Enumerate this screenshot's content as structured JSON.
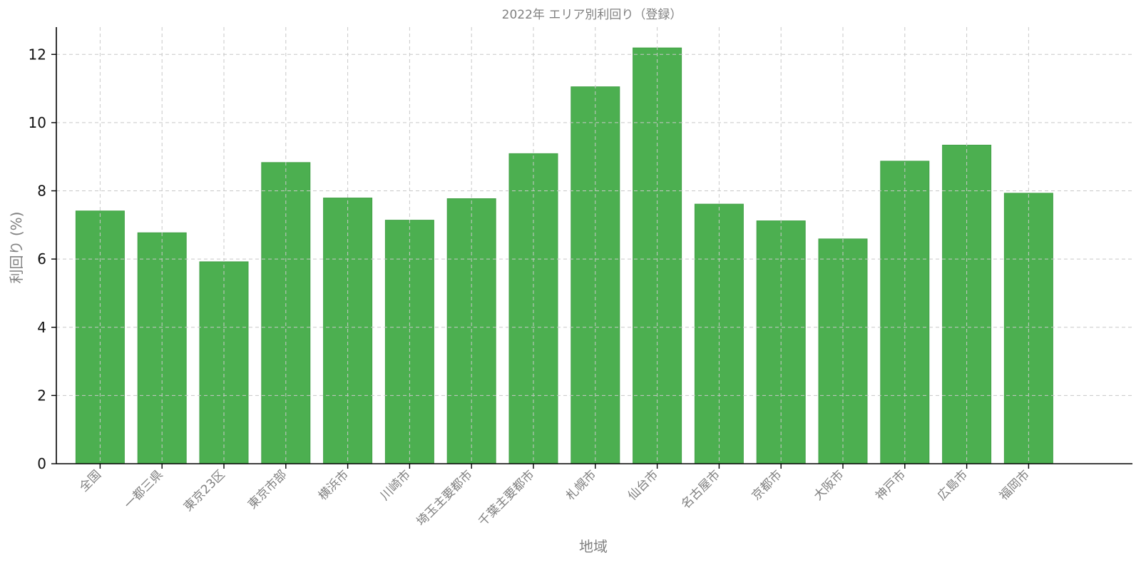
{
  "chart_data": {
    "type": "bar",
    "title": "2022年 エリア別利回り（登録）",
    "xlabel": "地域",
    "ylabel": "利回り (%)",
    "categories": [
      "全国",
      "一都三県",
      "東京23区",
      "東京市部",
      "横浜市",
      "川崎市",
      "埼玉主要都市",
      "千葉主要都市",
      "札幌市",
      "仙台市",
      "名古屋市",
      "京都市",
      "大阪市",
      "神戸市",
      "広島市",
      "福岡市"
    ],
    "values": [
      7.41,
      6.77,
      5.92,
      8.83,
      7.79,
      7.14,
      7.77,
      9.09,
      11.05,
      12.19,
      7.61,
      7.12,
      6.59,
      8.87,
      9.34,
      7.93
    ],
    "ylim": [
      0,
      12.8
    ],
    "yticks": [
      0,
      2,
      4,
      6,
      8,
      10,
      12
    ],
    "grid": true,
    "colors": {
      "bar": "#4caf50",
      "bar_edge": "#43a047",
      "grid": "#c8c8c8"
    }
  }
}
